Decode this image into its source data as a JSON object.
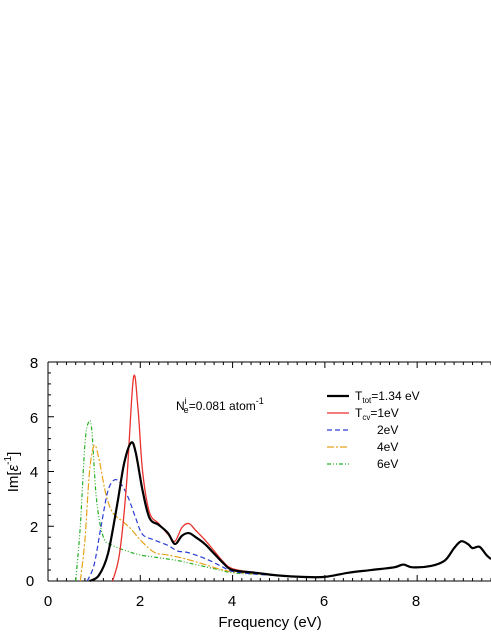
{
  "chart_data": {
    "type": "line",
    "title": "",
    "xlabel": "Frequency (eV)",
    "ylabel_main": "Im[",
    "ylabel_sym": "ε",
    "ylabel_sup": "-1",
    "ylabel_close": "]",
    "xlim": [
      0,
      9.6
    ],
    "ylim": [
      0,
      8
    ],
    "x_ticks": [
      0,
      2,
      4,
      6,
      8
    ],
    "y_ticks": [
      0,
      2,
      4,
      6,
      8
    ],
    "annotation": {
      "base": "N",
      "sup": "i",
      "sub": "e",
      "value": "=0.081 atom",
      "unit_sup": "-1"
    },
    "legend_placement": "top-right",
    "series": [
      {
        "name_base": "T",
        "name_sub": "tot",
        "name_rest": "=1.34 eV",
        "color": "#000000",
        "dash": "",
        "width": 2.2,
        "points": [
          [
            0.9,
            0.0
          ],
          [
            1.1,
            0.2
          ],
          [
            1.3,
            1.0
          ],
          [
            1.5,
            2.8
          ],
          [
            1.65,
            4.3
          ],
          [
            1.8,
            5.05
          ],
          [
            1.9,
            4.7
          ],
          [
            2.05,
            3.3
          ],
          [
            2.2,
            2.3
          ],
          [
            2.4,
            2.05
          ],
          [
            2.6,
            1.75
          ],
          [
            2.75,
            1.35
          ],
          [
            2.9,
            1.65
          ],
          [
            3.05,
            1.75
          ],
          [
            3.2,
            1.6
          ],
          [
            3.4,
            1.35
          ],
          [
            3.6,
            1.0
          ],
          [
            3.8,
            0.65
          ],
          [
            4.0,
            0.4
          ],
          [
            4.5,
            0.3
          ],
          [
            5.0,
            0.2
          ],
          [
            5.5,
            0.15
          ],
          [
            6.0,
            0.15
          ],
          [
            6.5,
            0.3
          ],
          [
            7.0,
            0.4
          ],
          [
            7.5,
            0.5
          ],
          [
            7.7,
            0.6
          ],
          [
            7.9,
            0.5
          ],
          [
            8.3,
            0.55
          ],
          [
            8.6,
            0.75
          ],
          [
            8.8,
            1.2
          ],
          [
            8.95,
            1.45
          ],
          [
            9.1,
            1.35
          ],
          [
            9.2,
            1.2
          ],
          [
            9.35,
            1.25
          ],
          [
            9.5,
            0.95
          ],
          [
            9.6,
            0.8
          ]
        ]
      },
      {
        "name_base": "T",
        "name_sub": "cv",
        "name_rest": "=1eV",
        "color": "#e8322e",
        "dash": "",
        "width": 1.3,
        "points": [
          [
            1.4,
            0.0
          ],
          [
            1.55,
            1.0
          ],
          [
            1.7,
            3.5
          ],
          [
            1.85,
            7.4
          ],
          [
            1.95,
            6.3
          ],
          [
            2.05,
            4.0
          ],
          [
            2.2,
            2.5
          ],
          [
            2.4,
            2.1
          ],
          [
            2.6,
            1.7
          ],
          [
            2.75,
            1.45
          ],
          [
            2.9,
            1.95
          ],
          [
            3.05,
            2.1
          ],
          [
            3.2,
            1.85
          ],
          [
            3.4,
            1.5
          ],
          [
            3.6,
            1.1
          ],
          [
            3.8,
            0.7
          ],
          [
            4.0,
            0.45
          ],
          [
            4.5,
            0.3
          ],
          [
            5.0,
            0.2
          ],
          [
            5.5,
            0.15
          ],
          [
            6.0,
            0.15
          ],
          [
            6.5,
            0.3
          ],
          [
            7.0,
            0.4
          ],
          [
            7.5,
            0.5
          ],
          [
            7.7,
            0.6
          ],
          [
            7.9,
            0.5
          ],
          [
            8.3,
            0.55
          ],
          [
            8.6,
            0.75
          ],
          [
            8.8,
            1.2
          ],
          [
            8.95,
            1.45
          ],
          [
            9.1,
            1.35
          ],
          [
            9.2,
            1.2
          ],
          [
            9.35,
            1.25
          ],
          [
            9.5,
            0.95
          ],
          [
            9.6,
            0.8
          ]
        ]
      },
      {
        "name_base": "",
        "name_sub": "",
        "name_rest": "2eV",
        "color": "#2a3cd6",
        "dash": "5,3",
        "width": 1.2,
        "points": [
          [
            0.85,
            0.0
          ],
          [
            1.0,
            0.6
          ],
          [
            1.15,
            2.0
          ],
          [
            1.3,
            3.3
          ],
          [
            1.45,
            3.7
          ],
          [
            1.6,
            3.5
          ],
          [
            1.75,
            3.0
          ],
          [
            1.9,
            2.3
          ],
          [
            2.05,
            1.7
          ],
          [
            2.3,
            1.5
          ],
          [
            2.6,
            1.3
          ],
          [
            2.8,
            1.1
          ],
          [
            3.0,
            1.05
          ],
          [
            3.2,
            0.95
          ],
          [
            3.5,
            0.75
          ],
          [
            3.8,
            0.5
          ],
          [
            4.0,
            0.35
          ],
          [
            4.5,
            0.25
          ],
          [
            5.0,
            0.2
          ],
          [
            5.5,
            0.15
          ],
          [
            6.0,
            0.15
          ],
          [
            6.5,
            0.3
          ],
          [
            7.0,
            0.4
          ],
          [
            7.5,
            0.5
          ],
          [
            7.7,
            0.6
          ],
          [
            7.9,
            0.5
          ],
          [
            8.3,
            0.55
          ],
          [
            8.6,
            0.75
          ],
          [
            8.8,
            1.2
          ],
          [
            8.95,
            1.45
          ],
          [
            9.1,
            1.35
          ],
          [
            9.2,
            1.2
          ],
          [
            9.35,
            1.25
          ],
          [
            9.5,
            0.95
          ],
          [
            9.6,
            0.8
          ]
        ]
      },
      {
        "name_base": "",
        "name_sub": "",
        "name_rest": "4eV",
        "color": "#e8a21a",
        "dash": "7,2,2,2",
        "width": 1.2,
        "points": [
          [
            0.7,
            0.0
          ],
          [
            0.8,
            1.5
          ],
          [
            0.9,
            4.0
          ],
          [
            1.0,
            4.95
          ],
          [
            1.1,
            4.5
          ],
          [
            1.25,
            3.2
          ],
          [
            1.4,
            2.5
          ],
          [
            1.6,
            2.2
          ],
          [
            1.8,
            1.9
          ],
          [
            2.0,
            1.5
          ],
          [
            2.3,
            1.05
          ],
          [
            2.6,
            0.95
          ],
          [
            3.0,
            0.8
          ],
          [
            3.4,
            0.6
          ],
          [
            3.8,
            0.4
          ],
          [
            4.2,
            0.3
          ],
          [
            5.0,
            0.2
          ],
          [
            5.5,
            0.15
          ],
          [
            6.0,
            0.15
          ],
          [
            6.5,
            0.3
          ],
          [
            7.0,
            0.4
          ],
          [
            7.5,
            0.5
          ],
          [
            7.7,
            0.6
          ],
          [
            7.9,
            0.5
          ],
          [
            8.3,
            0.55
          ],
          [
            8.6,
            0.75
          ],
          [
            8.8,
            1.2
          ],
          [
            8.95,
            1.45
          ],
          [
            9.1,
            1.35
          ],
          [
            9.2,
            1.2
          ],
          [
            9.35,
            1.25
          ],
          [
            9.5,
            0.95
          ],
          [
            9.6,
            0.8
          ]
        ]
      },
      {
        "name_base": "",
        "name_sub": "",
        "name_rest": "6eV",
        "color": "#22b022",
        "dash": "4,2,1,2,1,2",
        "width": 1.2,
        "points": [
          [
            0.6,
            0.0
          ],
          [
            0.7,
            2.0
          ],
          [
            0.8,
            5.0
          ],
          [
            0.88,
            5.8
          ],
          [
            0.95,
            5.5
          ],
          [
            1.05,
            3.0
          ],
          [
            1.2,
            1.6
          ],
          [
            1.4,
            1.3
          ],
          [
            1.7,
            1.1
          ],
          [
            2.0,
            0.95
          ],
          [
            2.4,
            0.85
          ],
          [
            2.8,
            0.75
          ],
          [
            3.2,
            0.6
          ],
          [
            3.6,
            0.45
          ],
          [
            4.0,
            0.3
          ],
          [
            4.5,
            0.25
          ],
          [
            5.0,
            0.2
          ],
          [
            5.5,
            0.15
          ],
          [
            6.0,
            0.15
          ],
          [
            6.5,
            0.3
          ],
          [
            7.0,
            0.4
          ],
          [
            7.5,
            0.5
          ],
          [
            7.7,
            0.6
          ],
          [
            7.9,
            0.5
          ],
          [
            8.3,
            0.55
          ],
          [
            8.6,
            0.75
          ],
          [
            8.8,
            1.2
          ],
          [
            8.95,
            1.45
          ],
          [
            9.1,
            1.35
          ],
          [
            9.2,
            1.2
          ],
          [
            9.35,
            1.25
          ],
          [
            9.5,
            0.95
          ],
          [
            9.6,
            0.8
          ]
        ]
      }
    ]
  }
}
